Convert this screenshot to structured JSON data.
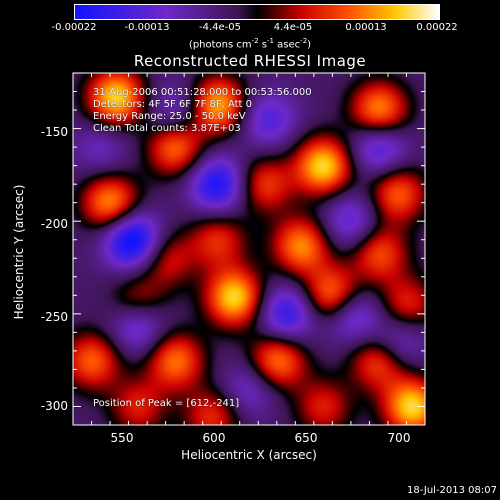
{
  "colorbar": {
    "tick_labels": [
      "-0.00022",
      "-0.00013",
      "-4.4e-05",
      "4.4e-05",
      "0.00013",
      "0.00022"
    ],
    "units_text": "(photons cm",
    "units_sup1": "-2",
    "units_mid": " s",
    "units_sup2": "-1",
    "units_mid2": " asec",
    "units_sup3": "-2",
    "units_end": ")",
    "range": [
      -0.00022,
      0.00022
    ]
  },
  "chart_data": {
    "type": "heatmap",
    "title": "Reconstructed RHESSI Image",
    "xlabel": "Heliocentric X (arcsec)",
    "ylabel": "Heliocentric Y (arcsec)",
    "xlim": [
      525,
      715
    ],
    "ylim": [
      -310,
      -120
    ],
    "x_ticks": [
      550,
      600,
      650,
      700
    ],
    "y_ticks": [
      -150,
      -200,
      -250,
      -300
    ],
    "x_tick_labels": [
      "550",
      "600",
      "650",
      "700"
    ],
    "y_tick_labels": [
      "-150",
      "-200",
      "-250",
      "-300"
    ],
    "peak": [
      612,
      -241
    ],
    "blobs": [
      {
        "x": 548,
        "y": -133,
        "v": 1.0
      },
      {
        "x": 603,
        "y": -137,
        "v": 0.9
      },
      {
        "x": 690,
        "y": -140,
        "v": 0.85
      },
      {
        "x": 580,
        "y": -160,
        "v": 0.75
      },
      {
        "x": 660,
        "y": -170,
        "v": 1.0
      },
      {
        "x": 700,
        "y": -185,
        "v": 0.7
      },
      {
        "x": 628,
        "y": -180,
        "v": 0.6
      },
      {
        "x": 545,
        "y": -190,
        "v": 0.85
      },
      {
        "x": 603,
        "y": -210,
        "v": 0.55
      },
      {
        "x": 575,
        "y": -220,
        "v": 0.5
      },
      {
        "x": 648,
        "y": -213,
        "v": 0.8
      },
      {
        "x": 690,
        "y": -217,
        "v": 0.65
      },
      {
        "x": 612,
        "y": -241,
        "v": 1.0
      },
      {
        "x": 560,
        "y": -245,
        "v": 0.6
      },
      {
        "x": 665,
        "y": -240,
        "v": 0.85
      },
      {
        "x": 705,
        "y": -245,
        "v": 0.55
      },
      {
        "x": 535,
        "y": -275,
        "v": 0.7
      },
      {
        "x": 580,
        "y": -275,
        "v": 0.75
      },
      {
        "x": 635,
        "y": -275,
        "v": 0.8
      },
      {
        "x": 690,
        "y": -275,
        "v": 0.7
      },
      {
        "x": 560,
        "y": -300,
        "v": 0.5
      },
      {
        "x": 600,
        "y": -305,
        "v": 0.55
      },
      {
        "x": 660,
        "y": -300,
        "v": 0.5
      },
      {
        "x": 708,
        "y": -300,
        "v": 1.0
      },
      {
        "x": 557,
        "y": -210,
        "v": -1.0
      },
      {
        "x": 603,
        "y": -180,
        "v": -0.8
      },
      {
        "x": 560,
        "y": -255,
        "v": -0.7
      },
      {
        "x": 640,
        "y": -250,
        "v": -0.7
      },
      {
        "x": 675,
        "y": -250,
        "v": -0.6
      },
      {
        "x": 690,
        "y": -160,
        "v": -0.6
      },
      {
        "x": 630,
        "y": -145,
        "v": -0.5
      },
      {
        "x": 580,
        "y": -140,
        "v": -0.4
      },
      {
        "x": 675,
        "y": -200,
        "v": -0.5
      },
      {
        "x": 620,
        "y": -290,
        "v": -0.4
      },
      {
        "x": 700,
        "y": -265,
        "v": -0.5
      },
      {
        "x": 540,
        "y": -160,
        "v": -0.3
      }
    ]
  },
  "annotations": {
    "line1": "31-Aug-2006 00:51:28.000 to 00:53:56.000",
    "line2": "Detectors: 4F 5F 6F 7F 8F, Att 0",
    "line3": "Energy Range: 25.0 - 50.0 keV",
    "line4": "Clean    Total counts: 3.87E+03",
    "peak_label": "Position of Peak = [612,-241]"
  },
  "timestamp": "18-Jul-2013 08:07"
}
